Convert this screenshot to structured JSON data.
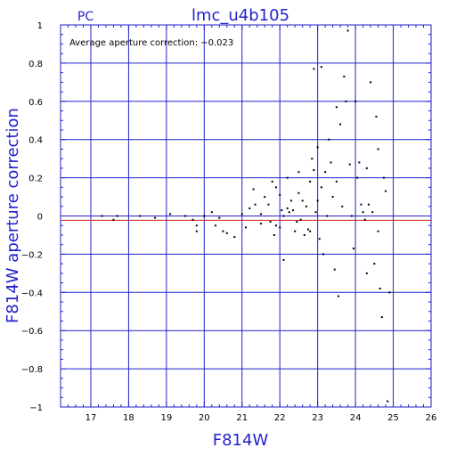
{
  "chart_data": {
    "type": "scatter",
    "title": "lmc_u4b105",
    "label": "PC",
    "annotation": "Average aperture correction: −0.023",
    "xlabel": "F814W",
    "ylabel": "F814W aperture correction",
    "xlim": [
      16.2,
      26
    ],
    "ylim": [
      -1,
      1
    ],
    "xticks": [
      17,
      18,
      19,
      20,
      21,
      22,
      23,
      24,
      25,
      26
    ],
    "yticks": [
      -1,
      -0.8,
      -0.6,
      -0.4,
      -0.2,
      0,
      0.2,
      0.4,
      0.6,
      0.8,
      1
    ],
    "xtick_labels": [
      "17",
      "18",
      "19",
      "20",
      "21",
      "22",
      "23",
      "24",
      "25",
      "26"
    ],
    "ytick_labels": [
      "−1",
      "−0.8",
      "−0.6",
      "−0.4",
      "−0.2",
      "0",
      "0.2",
      "0.4",
      "0.6",
      "0.8",
      "1"
    ],
    "grid": true,
    "reference_lines": [
      {
        "y": 0,
        "color": "#2222cc"
      },
      {
        "y": -0.023,
        "color": "#cc2222"
      }
    ],
    "colors": {
      "axes": "#2222cc",
      "points": "#000000",
      "mean_line": "#cc2222"
    },
    "points": [
      [
        17.3,
        0.0
      ],
      [
        17.6,
        -0.02
      ],
      [
        17.7,
        0.0
      ],
      [
        18.3,
        0.0
      ],
      [
        18.7,
        -0.01
      ],
      [
        19.1,
        0.01
      ],
      [
        19.5,
        0.0
      ],
      [
        19.7,
        -0.02
      ],
      [
        19.8,
        -0.05
      ],
      [
        19.8,
        -0.08
      ],
      [
        20.0,
        0.0
      ],
      [
        20.2,
        0.02
      ],
      [
        20.3,
        -0.05
      ],
      [
        20.4,
        -0.01
      ],
      [
        20.5,
        -0.08
      ],
      [
        20.6,
        -0.09
      ],
      [
        20.8,
        -0.11
      ],
      [
        21.0,
        0.01
      ],
      [
        21.1,
        -0.06
      ],
      [
        21.2,
        0.04
      ],
      [
        21.3,
        0.14
      ],
      [
        21.35,
        0.06
      ],
      [
        21.5,
        0.01
      ],
      [
        21.5,
        -0.04
      ],
      [
        21.6,
        0.1
      ],
      [
        21.7,
        0.06
      ],
      [
        21.75,
        -0.03
      ],
      [
        21.8,
        0.18
      ],
      [
        21.85,
        -0.1
      ],
      [
        21.9,
        0.15
      ],
      [
        21.9,
        -0.05
      ],
      [
        22.0,
        0.11
      ],
      [
        22.0,
        -0.06
      ],
      [
        22.05,
        0.03
      ],
      [
        22.1,
        -0.23
      ],
      [
        22.1,
        0.0
      ],
      [
        22.2,
        0.2
      ],
      [
        22.2,
        0.04
      ],
      [
        22.25,
        0.02
      ],
      [
        22.3,
        0.08
      ],
      [
        22.35,
        0.03
      ],
      [
        22.4,
        -0.08
      ],
      [
        22.45,
        -0.03
      ],
      [
        22.5,
        0.23
      ],
      [
        22.5,
        0.12
      ],
      [
        22.55,
        -0.02
      ],
      [
        22.6,
        0.08
      ],
      [
        22.65,
        -0.1
      ],
      [
        22.7,
        0.05
      ],
      [
        22.75,
        -0.07
      ],
      [
        22.8,
        0.18
      ],
      [
        22.8,
        -0.08
      ],
      [
        22.85,
        0.3
      ],
      [
        22.9,
        0.77
      ],
      [
        22.9,
        0.24
      ],
      [
        22.95,
        0.02
      ],
      [
        23.0,
        0.36
      ],
      [
        23.0,
        0.08
      ],
      [
        23.05,
        -0.12
      ],
      [
        23.1,
        0.78
      ],
      [
        23.1,
        0.15
      ],
      [
        23.15,
        -0.2
      ],
      [
        23.2,
        0.23
      ],
      [
        23.25,
        0.0
      ],
      [
        23.3,
        0.4
      ],
      [
        23.35,
        0.28
      ],
      [
        23.4,
        0.1
      ],
      [
        23.45,
        -0.28
      ],
      [
        23.5,
        0.57
      ],
      [
        23.5,
        0.18
      ],
      [
        23.55,
        -0.42
      ],
      [
        23.6,
        0.48
      ],
      [
        23.65,
        0.05
      ],
      [
        23.7,
        0.73
      ],
      [
        23.75,
        0.6
      ],
      [
        23.8,
        0.97
      ],
      [
        23.85,
        0.27
      ],
      [
        23.9,
        0.0
      ],
      [
        23.95,
        -0.17
      ],
      [
        24.0,
        0.6
      ],
      [
        24.05,
        0.2
      ],
      [
        24.1,
        0.28
      ],
      [
        24.15,
        0.06
      ],
      [
        24.2,
        0.02
      ],
      [
        24.25,
        -0.02
      ],
      [
        24.3,
        0.25
      ],
      [
        24.3,
        -0.3
      ],
      [
        24.35,
        0.06
      ],
      [
        24.4,
        0.7
      ],
      [
        24.45,
        0.02
      ],
      [
        24.5,
        -0.25
      ],
      [
        24.55,
        0.52
      ],
      [
        24.6,
        0.35
      ],
      [
        24.6,
        -0.08
      ],
      [
        24.65,
        -0.38
      ],
      [
        24.7,
        -0.53
      ],
      [
        24.75,
        0.2
      ],
      [
        24.8,
        0.13
      ],
      [
        24.85,
        -0.97
      ],
      [
        24.9,
        -0.4
      ]
    ]
  }
}
